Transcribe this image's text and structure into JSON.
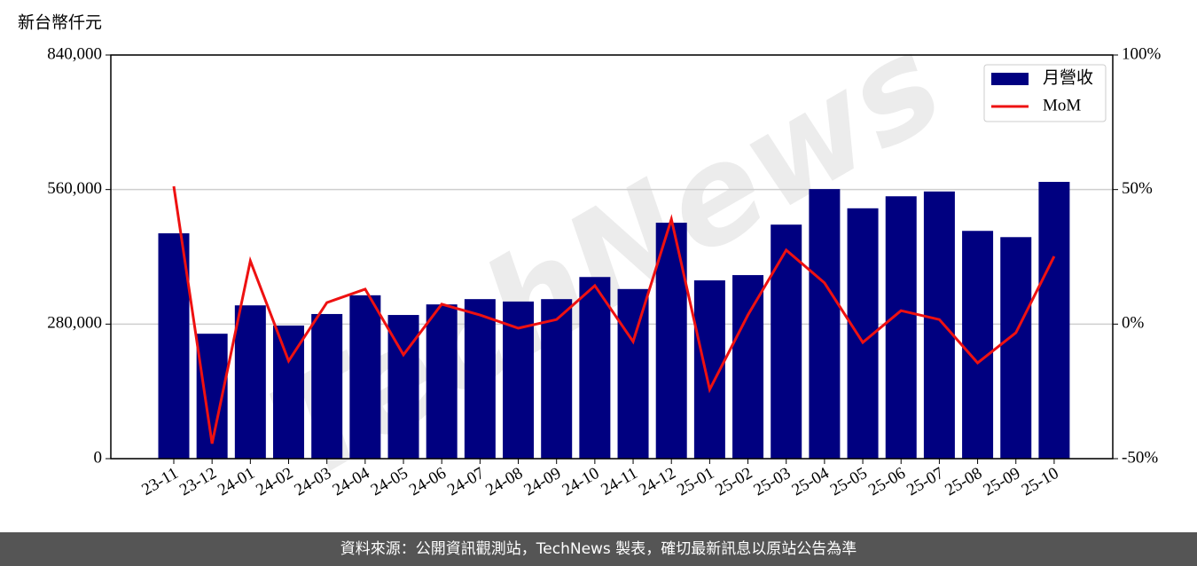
{
  "chart_data": {
    "type": "bar-line",
    "ylabel": "新台幣仟元",
    "watermark": "TechNews",
    "source": "資料來源：公開資訊觀測站，TechNews 製表，確切最新訊息以原站公告為準",
    "categories": [
      "23-11",
      "23-12",
      "24-01",
      "24-02",
      "24-03",
      "24-04",
      "24-05",
      "24-06",
      "24-07",
      "24-08",
      "24-09",
      "24-10",
      "24-11",
      "24-12",
      "25-01",
      "25-02",
      "25-03",
      "25-04",
      "25-05",
      "25-06",
      "25-07",
      "25-08",
      "25-09",
      "25-10"
    ],
    "series": [
      {
        "name": "月營收",
        "type": "bar",
        "color": "#000080",
        "values": [
          469000,
          260000,
          319000,
          277000,
          301000,
          340000,
          299000,
          321000,
          332000,
          327000,
          332000,
          378000,
          353000,
          491000,
          371000,
          382000,
          487000,
          561000,
          521000,
          546000,
          556000,
          474000,
          461000,
          576000
        ]
      },
      {
        "name": "MoM",
        "type": "line",
        "axis": "y2",
        "color": "#ee1111",
        "values": [
          51.2,
          -44.4,
          23.5,
          -13.7,
          8.0,
          13.0,
          -11.4,
          7.4,
          3.4,
          -1.5,
          1.7,
          14.3,
          -6.5,
          39.0,
          -24.3,
          3.4,
          27.5,
          15.3,
          -6.8,
          5.0,
          1.7,
          -14.4,
          -3.2,
          25.2
        ]
      }
    ],
    "ylim": [
      0,
      840000
    ],
    "yticks": [
      0,
      {
        "value": 280000,
        "label": "280,000"
      },
      {
        "value": 560000,
        "label": "560,000"
      },
      {
        "value": 840000,
        "label": "840,000"
      }
    ],
    "y2lim": [
      -50,
      100
    ],
    "y2ticks": [
      {
        "value": -50,
        "label": "-50%"
      },
      {
        "value": 0,
        "label": "0%"
      },
      {
        "value": 50,
        "label": "50%"
      },
      {
        "value": 100,
        "label": "100%"
      }
    ],
    "grid": true,
    "legend": "upper right"
  }
}
